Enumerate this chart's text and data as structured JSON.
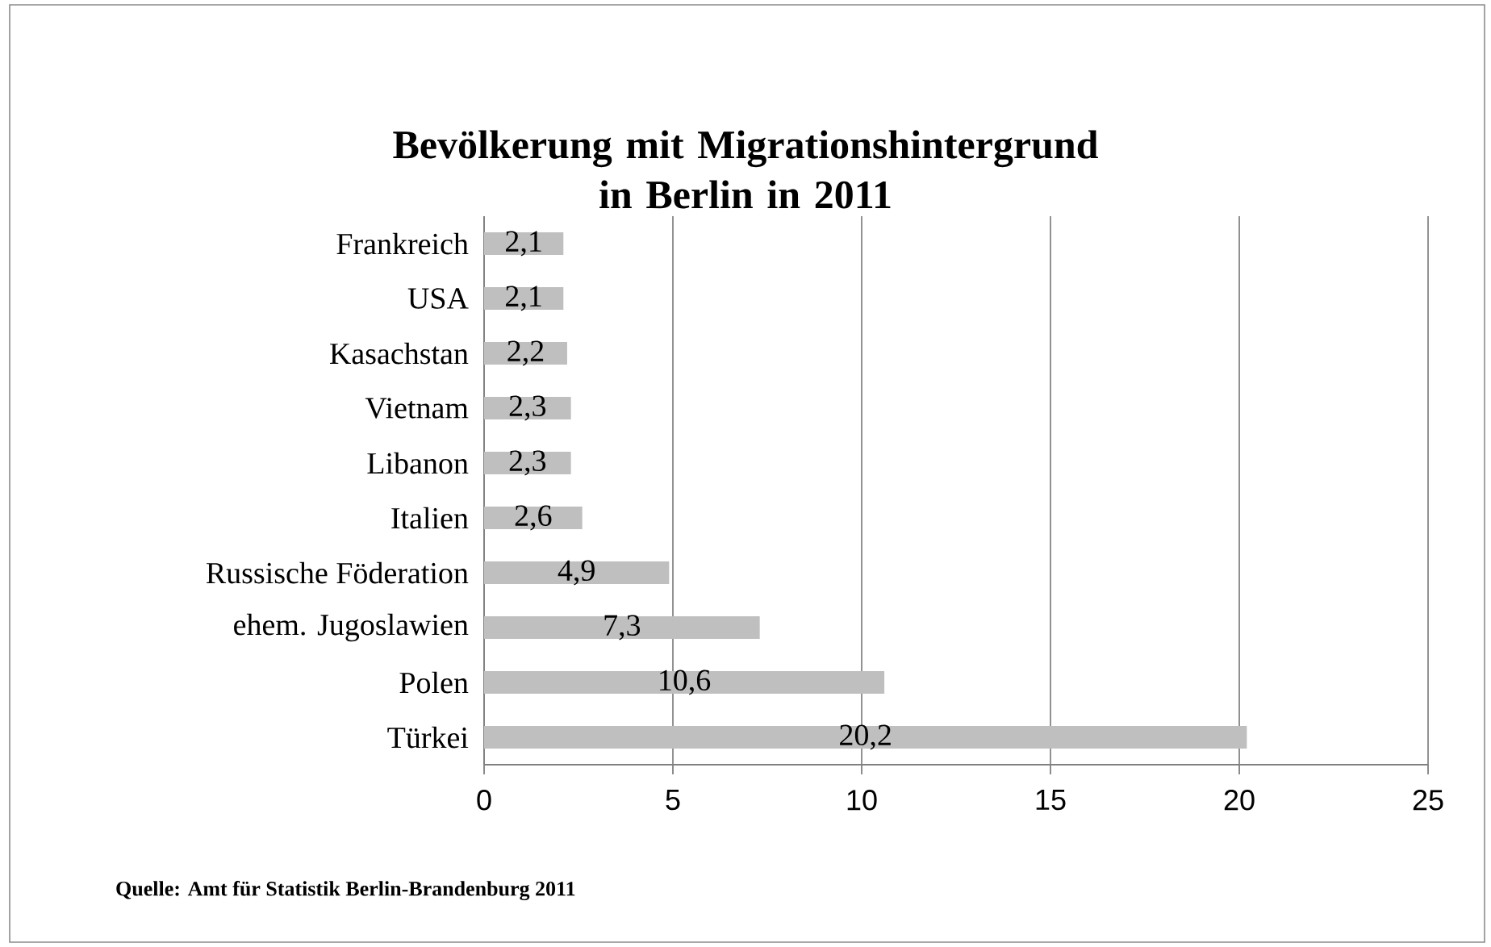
{
  "chart_data": {
    "type": "bar",
    "orientation": "horizontal",
    "title": "Bevölkerung mit Migrationshintergrund in Berlin in 2011",
    "categories": [
      "Frankreich",
      "USA",
      "Kasachstan",
      "Vietnam",
      "Libanon",
      "Italien",
      "Russische Föderation",
      "ehem. Jugoslawien",
      "Polen",
      "Türkei"
    ],
    "values": [
      2.1,
      2.1,
      2.2,
      2.3,
      2.3,
      2.6,
      4.9,
      7.3,
      10.6,
      20.2
    ],
    "value_labels": [
      "2,1",
      "2,1",
      "2,2",
      "2,3",
      "2,3",
      "2,6",
      "4,9",
      "7,3",
      "10,6",
      "20,2"
    ],
    "color": "#bfbfbf",
    "xlim": [
      0,
      25
    ],
    "xticks": [
      0,
      5,
      10,
      15,
      20,
      25
    ],
    "grid": "x",
    "annotations": [
      "Quelle: Amt für Statistik Berlin-Brandenburg 2011"
    ]
  }
}
